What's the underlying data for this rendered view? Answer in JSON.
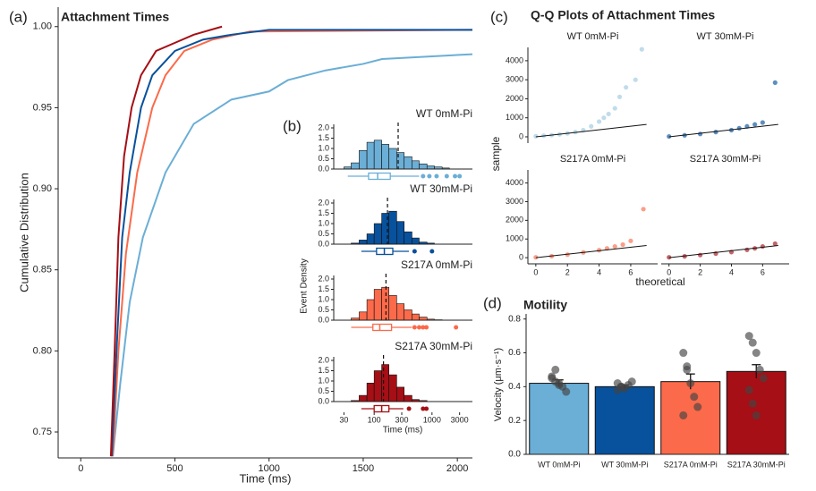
{
  "chart_data": [
    {
      "type": "line",
      "label": "(a)",
      "title": "Attachment Times",
      "x_label": "Time (ms)",
      "y_label": "Cumulative Distribution",
      "xlim": [
        -120,
        2080
      ],
      "ylim": [
        0.734,
        1.012
      ],
      "xticks": [
        0,
        500,
        1000,
        1500,
        2000
      ],
      "yticks": [
        0.75,
        {
          "value": 0.8,
          "label": "0.80"
        },
        0.85,
        {
          "value": 0.9,
          "label": "0.90"
        },
        0.95,
        {
          "value": 1.0,
          "label": "1.00"
        }
      ],
      "series": [
        {
          "color": "#6baed6",
          "x": [
            170,
            210,
            260,
            330,
            450,
            600,
            800,
            1000,
            1100,
            1300,
            1500,
            1600,
            2080
          ],
          "values": [
            0.735,
            0.78,
            0.83,
            0.87,
            0.91,
            0.94,
            0.955,
            0.96,
            0.967,
            0.973,
            0.977,
            0.98,
            0.983
          ]
        },
        {
          "color": "#fb6a4a",
          "x": [
            170,
            200,
            240,
            300,
            380,
            450,
            550,
            700,
            900,
            2080
          ],
          "values": [
            0.735,
            0.8,
            0.86,
            0.91,
            0.95,
            0.97,
            0.985,
            0.992,
            0.997,
            0.998
          ]
        },
        {
          "color": "#08519c",
          "x": [
            165,
            190,
            220,
            260,
            320,
            380,
            500,
            650,
            800,
            1000,
            2080
          ],
          "values": [
            0.735,
            0.8,
            0.87,
            0.91,
            0.95,
            0.97,
            0.985,
            0.992,
            0.995,
            0.998,
            0.998
          ]
        },
        {
          "color": "#a50f15",
          "x": [
            160,
            180,
            200,
            230,
            270,
            320,
            400,
            500,
            600,
            750
          ],
          "values": [
            0.735,
            0.8,
            0.87,
            0.92,
            0.95,
            0.97,
            0.985,
            0.99,
            0.995,
            1.0
          ]
        }
      ]
    },
    {
      "type": "histogram",
      "label": "(b)",
      "x_label": "Time (ms)",
      "y_label": "Event Density",
      "log_x": true,
      "xlim": [
        20,
        5000
      ],
      "xticks": [
        30,
        100,
        300,
        1000,
        3000
      ],
      "ylim": [
        0,
        2.0
      ],
      "yticks": [
        {
          "value": 0,
          "label": "0.0"
        },
        0.5,
        {
          "value": 1,
          "label": "1.0"
        },
        1.5,
        {
          "value": 2,
          "label": "2.0"
        }
      ],
      "panels": [
        {
          "title": "WT 0mM-Pi",
          "color": "#6baed6",
          "bins": [
            30,
            40,
            55,
            75,
            100,
            135,
            180,
            245,
            330,
            450,
            600,
            820,
            1100,
            1500,
            2000
          ],
          "values": [
            0.1,
            0.3,
            0.9,
            1.3,
            1.4,
            1.2,
            1.0,
            0.8,
            0.6,
            0.4,
            0.25,
            0.15,
            0.1,
            0.05
          ],
          "mean": 260,
          "box": {
            "min": 35,
            "q1": 80,
            "median": 115,
            "q3": 190,
            "max": 600
          },
          "outliers": [
            700,
            900,
            1200,
            1800,
            2500,
            3000
          ]
        },
        {
          "title": "WT 30mM-Pi",
          "color": "#08519c",
          "bins": [
            30,
            40,
            55,
            75,
            100,
            135,
            180,
            245,
            330,
            450,
            600,
            820,
            1100,
            1500,
            2000
          ],
          "values": [
            0,
            0.05,
            0.2,
            0.5,
            1.0,
            1.5,
            1.6,
            1.1,
            0.6,
            0.3,
            0.1,
            0.05,
            0,
            0
          ],
          "mean": 170,
          "box": {
            "min": 60,
            "q1": 110,
            "median": 150,
            "q3": 210,
            "max": 400
          },
          "outliers": [
            500,
            1000
          ]
        },
        {
          "title": "S217A 0mM-Pi",
          "color": "#fb6a4a",
          "bins": [
            30,
            40,
            55,
            75,
            100,
            135,
            180,
            245,
            330,
            450,
            600,
            820,
            1100,
            1500,
            2000
          ],
          "values": [
            0,
            0.1,
            0.4,
            1.0,
            1.5,
            1.6,
            1.2,
            0.8,
            0.5,
            0.3,
            0.15,
            0.05,
            0.02,
            0
          ],
          "mean": 160,
          "box": {
            "min": 40,
            "q1": 95,
            "median": 125,
            "q3": 200,
            "max": 450
          },
          "outliers": [
            500,
            600,
            700,
            800,
            2600
          ]
        },
        {
          "title": "S217A 30mM-Pi",
          "color": "#a50f15",
          "bins": [
            30,
            40,
            55,
            75,
            100,
            135,
            180,
            245,
            330,
            450,
            600,
            820,
            1100,
            1500,
            2000
          ],
          "values": [
            0,
            0.05,
            0.3,
            0.9,
            1.5,
            1.8,
            1.3,
            0.7,
            0.3,
            0.1,
            0.05,
            0,
            0,
            0
          ],
          "mean": 145,
          "box": {
            "min": 60,
            "q1": 100,
            "median": 135,
            "q3": 180,
            "max": 320
          },
          "outliers": [
            400,
            700,
            800
          ]
        }
      ]
    },
    {
      "type": "scatter",
      "label": "(c)",
      "title": "Q-Q Plots of Attachment Times",
      "x_label": "theoretical",
      "y_label": "sample",
      "xlim": [
        -0.5,
        7.7
      ],
      "ylim": [
        -330,
        4700
      ],
      "xticks": [
        0,
        2,
        4,
        6
      ],
      "yticks": [
        0,
        1000,
        2000,
        3000,
        4000
      ],
      "panels": [
        {
          "title": "WT 0mM-Pi",
          "color": "#9ecae1",
          "x": [
            0,
            0.5,
            1,
            1.5,
            2,
            2.5,
            3,
            3.5,
            4,
            4.3,
            4.6,
            5,
            5.3,
            5.7,
            6.3,
            6.7
          ],
          "values": [
            30,
            60,
            90,
            130,
            180,
            250,
            350,
            550,
            800,
            1000,
            1200,
            1500,
            2100,
            2600,
            3000,
            4600
          ],
          "line_x": [
            0,
            7
          ],
          "line_y": [
            0,
            650
          ]
        },
        {
          "title": "WT 30mM-Pi",
          "color": "#08519c",
          "x": [
            0,
            1,
            2,
            3,
            4,
            4.5,
            5,
            5.5,
            6,
            6.8
          ],
          "values": [
            20,
            80,
            150,
            250,
            350,
            450,
            550,
            650,
            750,
            2850
          ],
          "line_x": [
            0,
            7
          ],
          "line_y": [
            0,
            650
          ]
        },
        {
          "title": "S217A 0mM-Pi",
          "color": "#fb6a4a",
          "x": [
            0,
            1,
            2,
            3,
            4,
            4.5,
            5,
            5.5,
            6,
            6.8
          ],
          "values": [
            20,
            80,
            160,
            280,
            400,
            500,
            600,
            700,
            900,
            2600
          ],
          "line_x": [
            0,
            7
          ],
          "line_y": [
            0,
            650
          ]
        },
        {
          "title": "S217A 30mM-Pi",
          "color": "#a50f15",
          "x": [
            0,
            1,
            2,
            3,
            4,
            5,
            5.5,
            6,
            6.8
          ],
          "values": [
            20,
            70,
            140,
            220,
            300,
            420,
            500,
            600,
            750
          ],
          "line_x": [
            0,
            7
          ],
          "line_y": [
            0,
            650
          ]
        }
      ]
    },
    {
      "type": "bar",
      "label": "(d)",
      "title": "Motility",
      "y_label": "Velocity (μm·s⁻¹)",
      "ylim": [
        0,
        0.83
      ],
      "yticks": [
        {
          "value": 0,
          "label": "0.0"
        },
        0.2,
        0.4,
        0.6,
        0.8
      ],
      "categories": [
        "WT 0mM-Pi",
        "WT 30mM-Pi",
        "S217A 0mM-Pi",
        "S217A 30mM-Pi"
      ],
      "colors": [
        "#6baed6",
        "#08519c",
        "#fb6a4a",
        "#a50f15"
      ],
      "values": [
        0.42,
        0.4,
        0.43,
        0.49
      ],
      "errors": [
        0.02,
        0.01,
        0.045,
        0.04
      ],
      "points": [
        [
          0.45,
          0.43,
          0.42,
          0.4,
          0.37,
          0.46,
          0.5,
          0.41
        ],
        [
          0.42,
          0.4,
          0.39,
          0.41,
          0.43,
          0.38,
          0.4
        ],
        [
          0.6,
          0.52,
          0.42,
          0.34,
          0.28,
          0.23,
          0.5
        ],
        [
          0.7,
          0.66,
          0.6,
          0.5,
          0.45,
          0.38,
          0.3,
          0.23
        ]
      ]
    }
  ]
}
